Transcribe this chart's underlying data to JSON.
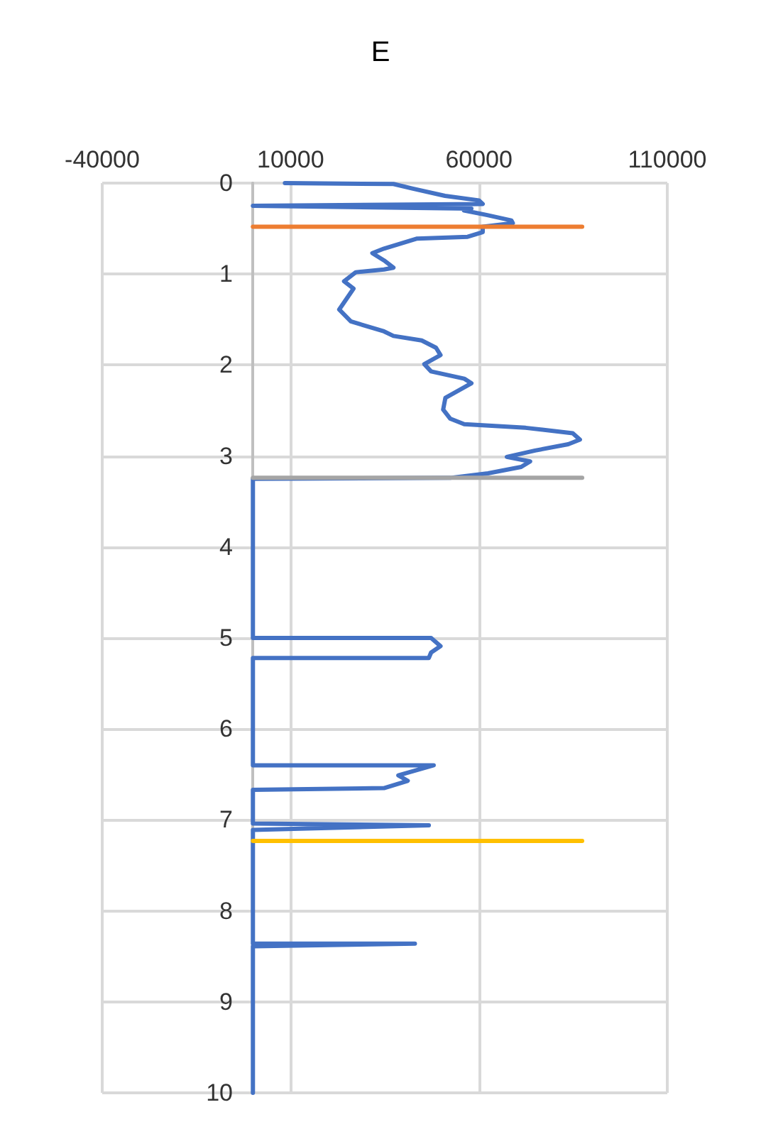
{
  "chart_data": {
    "type": "line",
    "title": "E",
    "xlim": [
      -40000,
      110000
    ],
    "xticks": [
      -40000,
      10000,
      60000,
      110000
    ],
    "ylim": [
      10,
      0
    ],
    "yticks": [
      0,
      1,
      2,
      3,
      4,
      5,
      6,
      7,
      8,
      9,
      10
    ],
    "grid": true,
    "marker": "none",
    "line_style": "solid",
    "series": [
      {
        "color": "#4472c4",
        "x": [
          8500,
          37300,
          42300,
          51000,
          60000,
          61000,
          0,
          58000,
          56000,
          62000,
          68600,
          69000,
          61000,
          61000,
          57000,
          43600,
          34800,
          31700,
          34800,
          37300,
          34800,
          27300,
          24200,
          26700,
          22900,
          26000,
          34800,
          37300,
          44800,
          48600,
          49800,
          45500,
          47300,
          56100,
          58000,
          51100,
          50500,
          52400,
          56100,
          72400,
          84900,
          86800,
          83700,
          74900,
          67400,
          73600,
          71200,
          62400,
          52400,
          0,
          0,
          47300,
          49800,
          47300,
          46700,
          0,
          0,
          48000,
          38600,
          41100,
          34800,
          0,
          0,
          46700,
          0,
          0,
          43000,
          0,
          0
        ],
        "values": [
          0,
          0.01,
          0.06,
          0.14,
          0.19,
          0.23,
          0.25,
          0.28,
          0.3,
          0.35,
          0.41,
          0.44,
          0.48,
          0.54,
          0.59,
          0.61,
          0.72,
          0.77,
          0.85,
          0.93,
          0.95,
          0.98,
          1.08,
          1.16,
          1.39,
          1.52,
          1.63,
          1.68,
          1.73,
          1.81,
          1.89,
          1.99,
          2.07,
          2.15,
          2.2,
          2.36,
          2.49,
          2.59,
          2.65,
          2.69,
          2.75,
          2.82,
          2.87,
          2.94,
          3.01,
          3.06,
          3.12,
          3.19,
          3.24,
          3.25,
          5.0,
          5.0,
          5.09,
          5.16,
          5.22,
          5.22,
          6.4,
          6.4,
          6.51,
          6.57,
          6.65,
          6.67,
          7.04,
          7.06,
          7.11,
          8.36,
          8.36,
          8.39,
          10
        ]
      },
      {
        "color": "#ed7d31",
        "x": [
          0,
          87400
        ],
        "values": [
          0.48,
          0.48
        ]
      },
      {
        "color": "#a5a5a5",
        "x": [
          0,
          87400
        ],
        "values": [
          3.24,
          3.24
        ]
      },
      {
        "color": "#ffc000",
        "x": [
          0,
          87400
        ],
        "values": [
          7.23,
          7.23
        ]
      }
    ]
  }
}
